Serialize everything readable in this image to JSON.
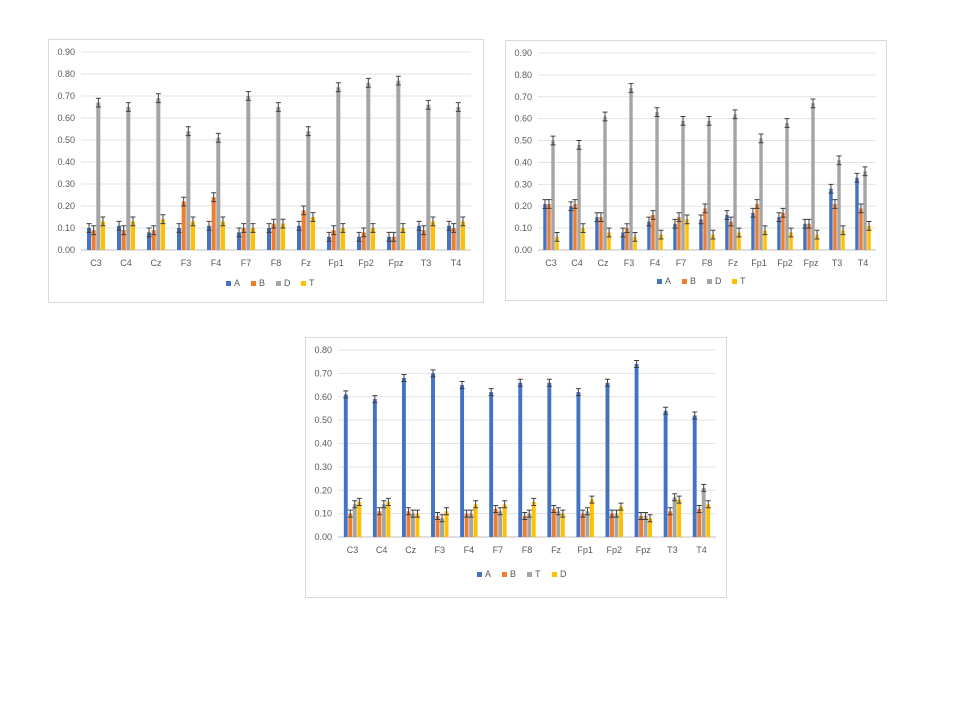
{
  "colors": {
    "A": "#4472C4",
    "B": "#ED7D31",
    "gray": "#A5A5A5",
    "yellow": "#FFC000"
  },
  "chart_data": [
    {
      "type": "bar",
      "categories": [
        "C3",
        "C4",
        "Cz",
        "F3",
        "F4",
        "F7",
        "F8",
        "Fz",
        "Fp1",
        "Fp2",
        "Fpz",
        "T3",
        "T4"
      ],
      "ylim": [
        0,
        0.9
      ],
      "yticks": [
        "0.00",
        "0.10",
        "0.20",
        "0.30",
        "0.40",
        "0.50",
        "0.60",
        "0.70",
        "0.80",
        "0.90"
      ],
      "grid": true,
      "legend_position": "bottom",
      "error_bar": 0.02,
      "series": [
        {
          "name": "A",
          "color": "#4472C4",
          "values": [
            0.1,
            0.11,
            0.08,
            0.1,
            0.11,
            0.08,
            0.1,
            0.11,
            0.06,
            0.06,
            0.06,
            0.11,
            0.11
          ]
        },
        {
          "name": "B",
          "color": "#ED7D31",
          "values": [
            0.09,
            0.09,
            0.09,
            0.22,
            0.24,
            0.1,
            0.12,
            0.18,
            0.09,
            0.08,
            0.06,
            0.09,
            0.1
          ]
        },
        {
          "name": "D",
          "color": "#A5A5A5",
          "values": [
            0.67,
            0.65,
            0.69,
            0.54,
            0.51,
            0.7,
            0.65,
            0.54,
            0.74,
            0.76,
            0.77,
            0.66,
            0.65
          ]
        },
        {
          "name": "T",
          "color": "#FFC000",
          "values": [
            0.13,
            0.13,
            0.14,
            0.13,
            0.13,
            0.1,
            0.12,
            0.15,
            0.1,
            0.1,
            0.1,
            0.13,
            0.13
          ]
        }
      ]
    },
    {
      "type": "bar",
      "categories": [
        "C3",
        "C4",
        "Cz",
        "F3",
        "F4",
        "F7",
        "F8",
        "Fz",
        "Fp1",
        "Fp2",
        "Fpz",
        "T3",
        "T4"
      ],
      "ylim": [
        0,
        0.9
      ],
      "yticks": [
        "0.00",
        "0.10",
        "0.20",
        "0.30",
        "0.40",
        "0.50",
        "0.60",
        "0.70",
        "0.80",
        "0.90"
      ],
      "grid": true,
      "legend_position": "bottom",
      "error_bar": 0.02,
      "series": [
        {
          "name": "A",
          "color": "#4472C4",
          "values": [
            0.21,
            0.2,
            0.15,
            0.08,
            0.13,
            0.12,
            0.14,
            0.16,
            0.17,
            0.15,
            0.12,
            0.28,
            0.33
          ]
        },
        {
          "name": "B",
          "color": "#ED7D31",
          "values": [
            0.21,
            0.21,
            0.15,
            0.1,
            0.16,
            0.15,
            0.19,
            0.13,
            0.21,
            0.17,
            0.12,
            0.21,
            0.19
          ]
        },
        {
          "name": "D",
          "color": "#A5A5A5",
          "values": [
            0.5,
            0.48,
            0.61,
            0.74,
            0.63,
            0.59,
            0.59,
            0.62,
            0.51,
            0.58,
            0.67,
            0.41,
            0.36
          ]
        },
        {
          "name": "T",
          "color": "#FFC000",
          "values": [
            0.06,
            0.1,
            0.08,
            0.06,
            0.07,
            0.14,
            0.07,
            0.08,
            0.09,
            0.08,
            0.07,
            0.09,
            0.11
          ]
        }
      ]
    },
    {
      "type": "bar",
      "categories": [
        "C3",
        "C4",
        "Cz",
        "F3",
        "F4",
        "F7",
        "F8",
        "Fz",
        "Fp1",
        "Fp2",
        "Fpz",
        "T3",
        "T4"
      ],
      "ylim": [
        0,
        0.8
      ],
      "yticks": [
        "0.00",
        "0.10",
        "0.20",
        "0.30",
        "0.40",
        "0.50",
        "0.60",
        "0.70",
        "0.80"
      ],
      "grid": true,
      "legend_position": "bottom",
      "error_bar": 0.015,
      "series": [
        {
          "name": "A",
          "color": "#4472C4",
          "values": [
            0.61,
            0.59,
            0.68,
            0.7,
            0.65,
            0.62,
            0.66,
            0.66,
            0.62,
            0.66,
            0.74,
            0.54,
            0.52
          ]
        },
        {
          "name": "B",
          "color": "#ED7D31",
          "values": [
            0.1,
            0.11,
            0.11,
            0.09,
            0.1,
            0.12,
            0.09,
            0.12,
            0.1,
            0.1,
            0.09,
            0.11,
            0.12
          ]
        },
        {
          "name": "T",
          "color": "#A5A5A5",
          "values": [
            0.14,
            0.14,
            0.1,
            0.08,
            0.1,
            0.11,
            0.1,
            0.11,
            0.11,
            0.1,
            0.09,
            0.17,
            0.21
          ]
        },
        {
          "name": "D",
          "color": "#FFC000",
          "values": [
            0.15,
            0.15,
            0.1,
            0.11,
            0.14,
            0.14,
            0.15,
            0.1,
            0.16,
            0.13,
            0.08,
            0.16,
            0.14
          ]
        }
      ]
    }
  ]
}
